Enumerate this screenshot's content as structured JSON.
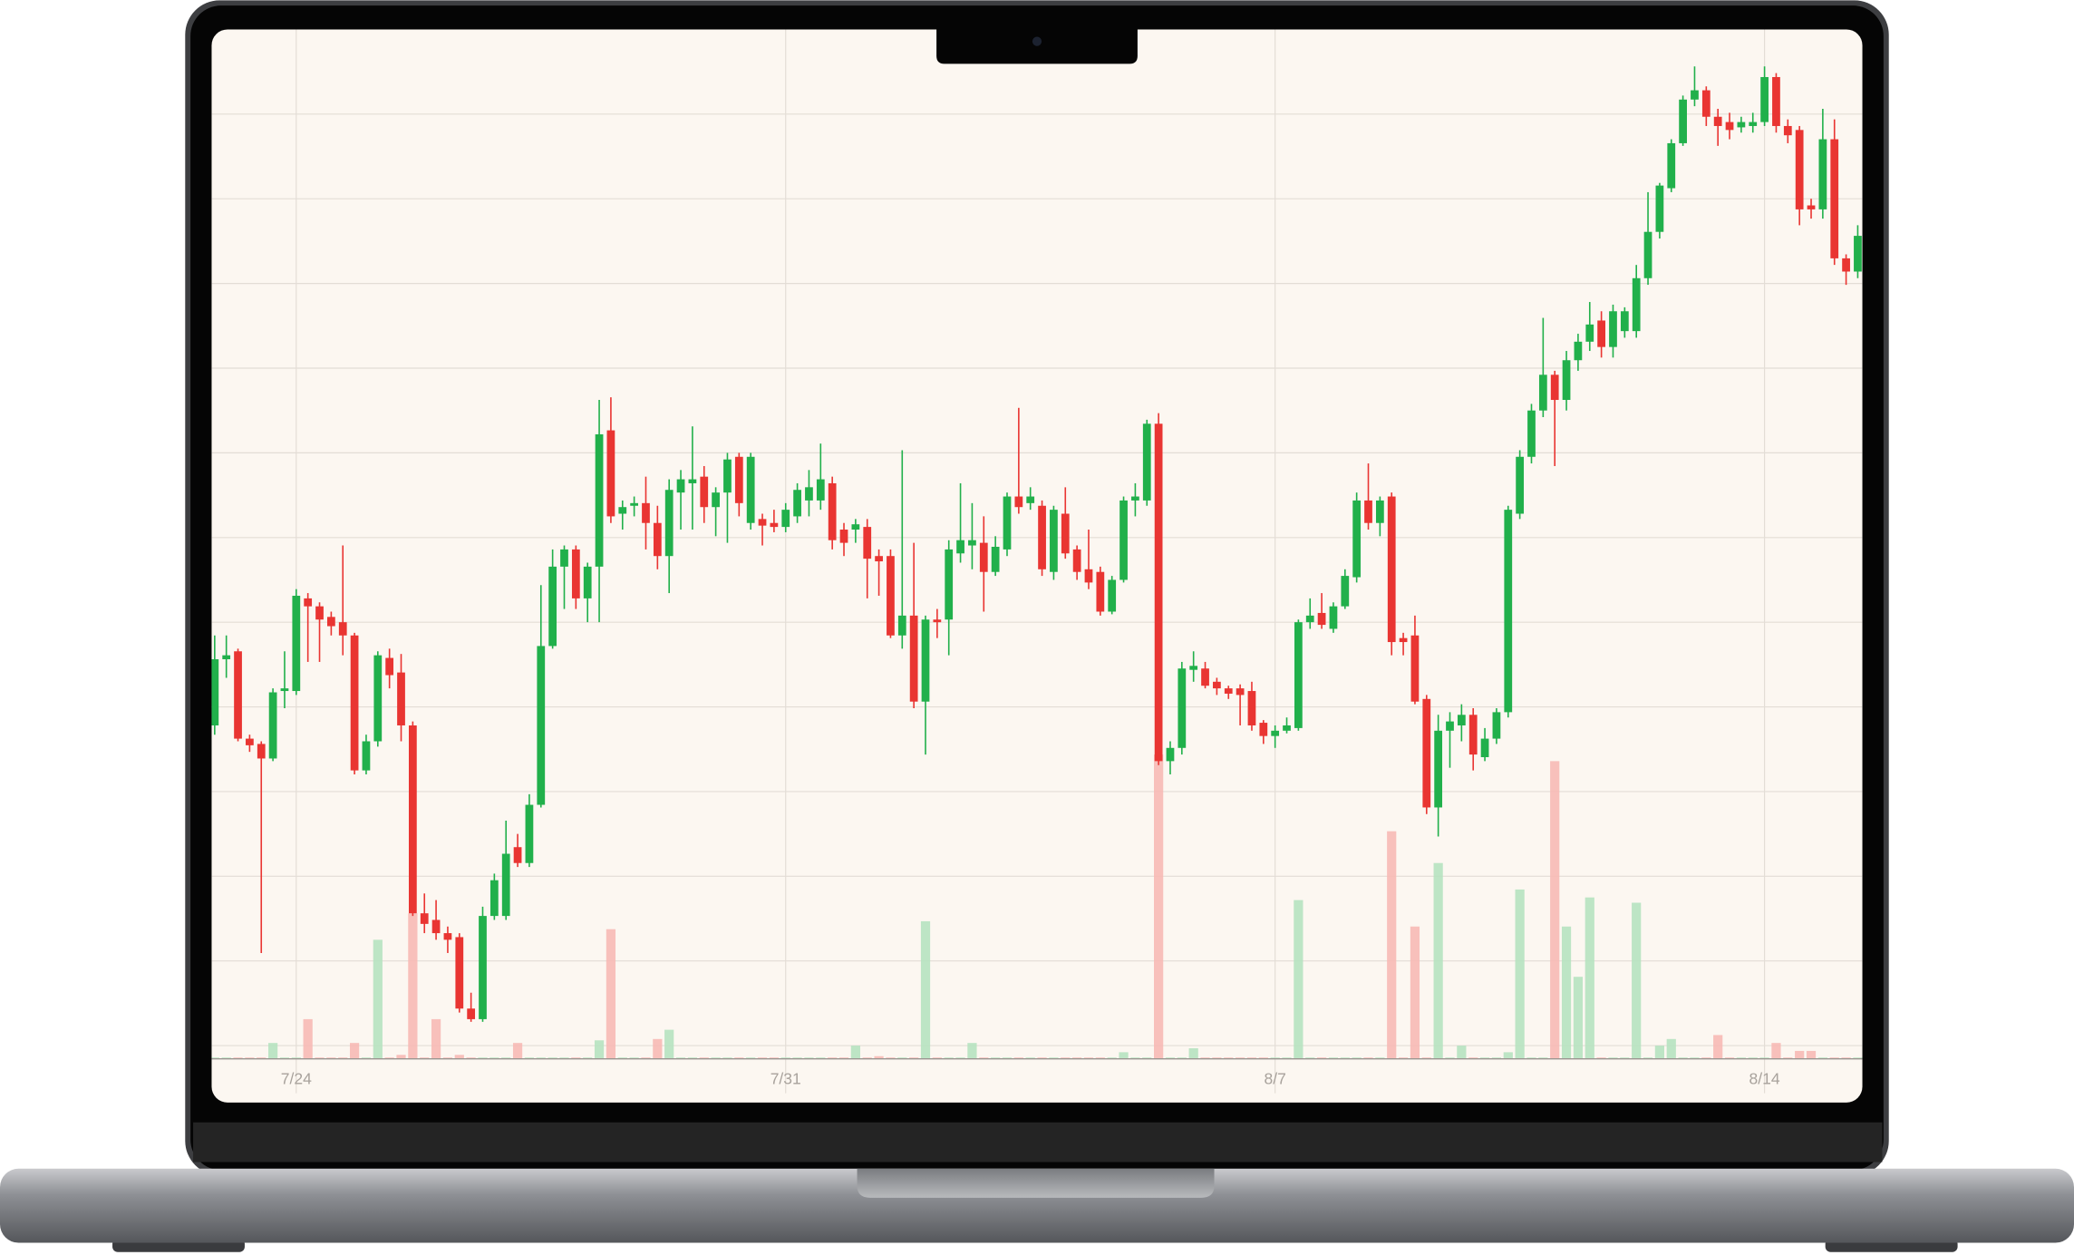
{
  "chart_data": {
    "type": "candlestick",
    "categories": [
      null,
      null,
      null,
      null,
      null,
      null,
      null,
      "7/24",
      null,
      null,
      null,
      null,
      null,
      null,
      null,
      null,
      null,
      null,
      null,
      null,
      null,
      null,
      null,
      null,
      null,
      null,
      null,
      null,
      null,
      null,
      null,
      null,
      null,
      null,
      null,
      null,
      null,
      null,
      null,
      null,
      null,
      null,
      null,
      null,
      null,
      null,
      null,
      null,
      null,
      "7/31",
      null,
      null,
      null,
      null,
      null,
      null,
      null,
      null,
      null,
      null,
      null,
      null,
      null,
      null,
      null,
      null,
      null,
      null,
      null,
      null,
      null,
      null,
      null,
      null,
      null,
      null,
      null,
      null,
      null,
      null,
      null,
      null,
      null,
      null,
      null,
      null,
      null,
      null,
      null,
      null,
      null,
      "8/7",
      null,
      null,
      null,
      null,
      null,
      null,
      null,
      null,
      null,
      null,
      null,
      null,
      null,
      null,
      null,
      null,
      null,
      null,
      null,
      null,
      null,
      null,
      null,
      null,
      null,
      null,
      null,
      null,
      null,
      null,
      null,
      null,
      null,
      null,
      null,
      null,
      null,
      null,
      null,
      null,
      null,
      "8/14",
      null,
      null,
      null,
      null,
      null,
      null,
      null,
      null
    ],
    "open": [
      252,
      302,
      308,
      242,
      238,
      227,
      278,
      278,
      348,
      342,
      334,
      330,
      320,
      218,
      240,
      303,
      292,
      252,
      110,
      105,
      95,
      92,
      38,
      30,
      108,
      108,
      160,
      148,
      192,
      312,
      372,
      385,
      348,
      372,
      475,
      412,
      418,
      420,
      405,
      380,
      428,
      435,
      440,
      417,
      428,
      455,
      405,
      408,
      405,
      402,
      410,
      422,
      422,
      435,
      400,
      400,
      402,
      380,
      380,
      320,
      335,
      270,
      332,
      332,
      382,
      388,
      390,
      368,
      385,
      425,
      420,
      418,
      368,
      412,
      385,
      370,
      368,
      338,
      362,
      422,
      422,
      480,
      225,
      235,
      294,
      295,
      285,
      280,
      280,
      278,
      254,
      244,
      248,
      250,
      330,
      337,
      325,
      342,
      364,
      422,
      405,
      425,
      318,
      320,
      272,
      190,
      248,
      252,
      260,
      228,
      242,
      262,
      412,
      455,
      490,
      517,
      498,
      528,
      542,
      558,
      538,
      550,
      550,
      590,
      625,
      658,
      692,
      725,
      732,
      712,
      708,
      704,
      705,
      708,
      742,
      705,
      702,
      645,
      642,
      695,
      605,
      595
    ],
    "high": [
      320,
      320,
      310,
      245,
      240,
      280,
      308,
      355,
      352,
      345,
      338,
      388,
      322,
      245,
      308,
      310,
      306,
      255,
      125,
      120,
      100,
      95,
      50,
      115,
      140,
      180,
      170,
      200,
      358,
      385,
      388,
      388,
      375,
      498,
      500,
      422,
      425,
      440,
      418,
      438,
      445,
      478,
      448,
      432,
      458,
      458,
      458,
      412,
      415,
      420,
      435,
      445,
      465,
      440,
      405,
      408,
      408,
      385,
      385,
      460,
      390,
      335,
      340,
      392,
      435,
      420,
      410,
      395,
      428,
      492,
      432,
      422,
      418,
      432,
      388,
      400,
      372,
      365,
      425,
      435,
      483,
      488,
      240,
      300,
      308,
      300,
      288,
      282,
      283,
      285,
      256,
      252,
      258,
      332,
      348,
      352,
      345,
      370,
      428,
      450,
      425,
      428,
      322,
      335,
      275,
      260,
      262,
      268,
      265,
      250,
      265,
      418,
      460,
      495,
      560,
      520,
      535,
      548,
      572,
      565,
      570,
      568,
      600,
      655,
      662,
      695,
      728,
      750,
      735,
      718,
      715,
      712,
      715,
      750,
      745,
      710,
      705,
      650,
      718,
      710,
      608,
      630
    ],
    "low": [
      245,
      288,
      240,
      232,
      80,
      225,
      265,
      275,
      300,
      300,
      320,
      305,
      215,
      215,
      236,
      280,
      240,
      108,
      95,
      90,
      80,
      35,
      28,
      28,
      105,
      105,
      145,
      145,
      190,
      310,
      340,
      340,
      330,
      330,
      405,
      400,
      410,
      385,
      370,
      352,
      400,
      400,
      405,
      395,
      390,
      410,
      400,
      388,
      398,
      398,
      405,
      410,
      415,
      385,
      380,
      390,
      348,
      350,
      318,
      310,
      265,
      230,
      318,
      305,
      375,
      370,
      338,
      365,
      380,
      412,
      415,
      365,
      362,
      378,
      362,
      355,
      335,
      336,
      360,
      410,
      418,
      222,
      215,
      230,
      285,
      280,
      275,
      272,
      252,
      248,
      238,
      235,
      246,
      248,
      325,
      325,
      322,
      340,
      360,
      400,
      395,
      305,
      305,
      268,
      185,
      168,
      220,
      240,
      218,
      225,
      238,
      258,
      408,
      450,
      485,
      448,
      490,
      520,
      535,
      530,
      530,
      545,
      545,
      585,
      620,
      655,
      690,
      720,
      705,
      690,
      695,
      700,
      700,
      705,
      700,
      692,
      630,
      635,
      635,
      600,
      585,
      590
    ],
    "close": [
      302,
      305,
      242,
      237,
      227,
      277,
      280,
      350,
      342,
      332,
      327,
      320,
      218,
      240,
      305,
      290,
      252,
      110,
      102,
      95,
      90,
      38,
      30,
      108,
      135,
      155,
      148,
      192,
      312,
      372,
      385,
      348,
      372,
      472,
      410,
      417,
      420,
      405,
      380,
      430,
      438,
      438,
      417,
      428,
      453,
      420,
      455,
      403,
      402,
      415,
      430,
      432,
      438,
      392,
      390,
      404,
      378,
      376,
      320,
      335,
      270,
      332,
      330,
      385,
      392,
      392,
      368,
      387,
      425,
      417,
      425,
      370,
      415,
      382,
      368,
      360,
      338,
      362,
      422,
      425,
      480,
      225,
      235,
      295,
      297,
      282,
      280,
      276,
      275,
      252,
      244,
      248,
      252,
      330,
      335,
      328,
      342,
      365,
      422,
      405,
      422,
      315,
      315,
      270,
      190,
      248,
      255,
      260,
      230,
      242,
      262,
      415,
      455,
      490,
      517,
      498,
      528,
      542,
      555,
      538,
      565,
      565,
      590,
      625,
      660,
      692,
      725,
      732,
      712,
      705,
      702,
      708,
      708,
      742,
      705,
      698,
      642,
      642,
      695,
      605,
      595,
      622
    ],
    "volume": [
      1,
      1,
      1,
      1,
      1,
      12,
      1,
      1,
      30,
      1,
      1,
      1,
      12,
      1,
      90,
      1,
      3,
      110,
      1,
      30,
      1,
      3,
      1,
      1,
      1,
      1,
      12,
      1,
      1,
      1,
      1,
      1,
      1,
      14,
      98,
      1,
      1,
      1,
      15,
      22,
      1,
      1,
      1,
      1,
      1,
      1,
      1,
      1,
      1,
      1,
      1,
      1,
      1,
      1,
      1,
      10,
      1,
      2,
      1,
      1,
      1,
      104,
      1,
      1,
      1,
      12,
      1,
      1,
      1,
      1,
      1,
      1,
      1,
      1,
      1,
      1,
      1,
      1,
      5,
      1,
      1,
      230,
      1,
      1,
      8,
      1,
      1,
      1,
      1,
      1,
      1,
      1,
      1,
      120,
      1,
      1,
      1,
      1,
      1,
      1,
      1,
      172,
      1,
      100,
      1,
      148,
      1,
      10,
      1,
      1,
      1,
      5,
      128,
      1,
      1,
      225,
      100,
      62,
      122,
      1,
      1,
      1,
      118,
      1,
      10,
      15,
      1,
      1,
      1,
      18,
      1,
      1,
      1,
      1,
      12,
      1,
      6,
      6,
      1,
      1,
      1,
      1
    ],
    "ylim": [
      0,
      776
    ],
    "up_color": "#21b04b",
    "down_color": "#e93532",
    "volume_up_color": "#b6e2c0",
    "volume_down_color": "#f7b9b5",
    "background": "#fcf7f1",
    "grid": true
  }
}
